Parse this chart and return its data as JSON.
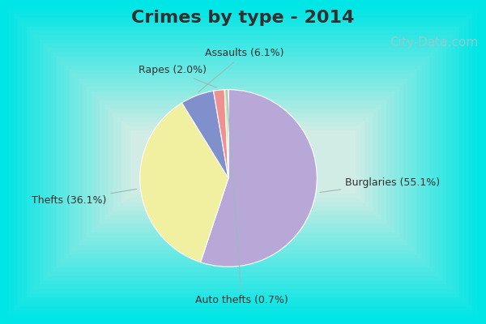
{
  "title": "Crimes by type - 2014",
  "slices": [
    {
      "label": "Burglaries (55.1%)",
      "value": 55.1,
      "color": "#b8a8d8"
    },
    {
      "label": "Thefts (36.1%)",
      "value": 36.1,
      "color": "#f0f0a0"
    },
    {
      "label": "Assaults (6.1%)",
      "value": 6.1,
      "color": "#8090cc"
    },
    {
      "label": "Rapes (2.0%)",
      "value": 2.0,
      "color": "#f09090"
    },
    {
      "label": "Auto thefts (0.7%)",
      "value": 0.7,
      "color": "#c8e8b0"
    }
  ],
  "bg_outer": "#00e5e5",
  "bg_inner_center": "#d8ede4",
  "bg_inner_edge": "#00e5e5",
  "border_width": 8,
  "title_fontsize": 16,
  "title_color": "#303030",
  "label_fontsize": 9,
  "label_color": "#303030",
  "watermark": "City-Data.com",
  "watermark_color": "#a0c8c8",
  "watermark_fontsize": 11
}
